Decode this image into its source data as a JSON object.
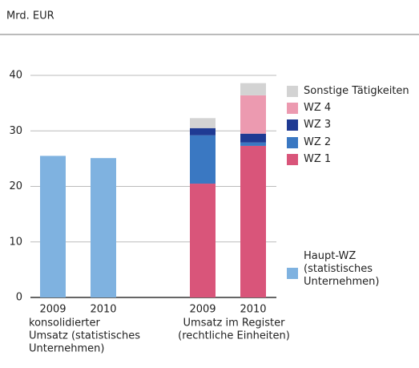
{
  "chart_data": {
    "type": "bar",
    "stacked": true,
    "ylabel": "Mrd. EUR",
    "categories": [
      "2009",
      "2010",
      "2009",
      "2010"
    ],
    "group_labels": [
      [
        "konsolidierter",
        "Umsatz (statistisches",
        "Unternehmen)"
      ],
      [
        "Umsatz im Register",
        "(rechtliche Einheiten)"
      ]
    ],
    "series": [
      {
        "name": "Haupt-WZ (statistisches Unternehmen)",
        "color": "#7fb2e0",
        "values": [
          25.5,
          25.1,
          null,
          null
        ]
      },
      {
        "name": "WZ 1",
        "color": "#d9557a",
        "values": [
          null,
          null,
          20.5,
          27.3
        ]
      },
      {
        "name": "WZ 2",
        "color": "#3a78c2",
        "values": [
          null,
          null,
          8.7,
          0.6
        ]
      },
      {
        "name": "WZ 3",
        "color": "#1f3a93",
        "values": [
          null,
          null,
          1.3,
          1.6
        ]
      },
      {
        "name": "WZ 4",
        "color": "#ec9ab0",
        "values": [
          null,
          null,
          null,
          6.9
        ]
      },
      {
        "name": "Sonstige Tätigkeiten",
        "color": "#d3d3d3",
        "values": [
          null,
          null,
          1.8,
          2.2
        ]
      }
    ],
    "ylim": [
      0,
      40
    ],
    "yticks": [
      0,
      10,
      20,
      30,
      40
    ],
    "grid": true
  }
}
